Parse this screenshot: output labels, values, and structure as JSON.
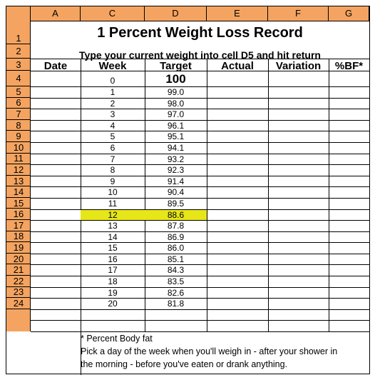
{
  "columns": [
    "A",
    "C",
    "D",
    "E",
    "F",
    "G"
  ],
  "title": "1 Percent Weight Loss Record",
  "subtitle": "Type your current weight into cell D5 and hit return",
  "headers": [
    "Date",
    "Week",
    "Target",
    "Actual",
    "Variation",
    "%BF*"
  ],
  "row_numbers": [
    "1",
    "2",
    "3",
    "4",
    "5",
    "6",
    "7",
    "8",
    "9",
    "10",
    "11",
    "12",
    "13",
    "14",
    "15",
    "16",
    "17",
    "18",
    "19",
    "20",
    "21",
    "22",
    "23",
    "24"
  ],
  "start": {
    "week": "0",
    "target": "100"
  },
  "rows": [
    {
      "week": "1",
      "target": "99.0"
    },
    {
      "week": "2",
      "target": "98.0"
    },
    {
      "week": "3",
      "target": "97.0"
    },
    {
      "week": "4",
      "target": "96.1"
    },
    {
      "week": "5",
      "target": "95.1"
    },
    {
      "week": "6",
      "target": "94.1"
    },
    {
      "week": "7",
      "target": "93.2"
    },
    {
      "week": "8",
      "target": "92.3"
    },
    {
      "week": "9",
      "target": "91.4"
    },
    {
      "week": "10",
      "target": "90.4"
    },
    {
      "week": "11",
      "target": "89.5"
    },
    {
      "week": "12",
      "target": "88.6"
    },
    {
      "week": "13",
      "target": "87.8"
    },
    {
      "week": "14",
      "target": "86.9"
    },
    {
      "week": "15",
      "target": "86.0"
    },
    {
      "week": "16",
      "target": "85.1"
    },
    {
      "week": "17",
      "target": "84.3"
    },
    {
      "week": "18",
      "target": "83.5"
    },
    {
      "week": "19",
      "target": "82.6"
    },
    {
      "week": "20",
      "target": "81.8"
    }
  ],
  "highlight_week": "12",
  "footnote": "* Percent Body fat",
  "instructions_line1": "Pick a day of the week when you'll weigh in - after your shower in",
  "instructions_line2": "the morning - before you've eaten or drank anything.",
  "colors": {
    "header_bg": "#f4a460",
    "highlight": "#e6e619"
  }
}
